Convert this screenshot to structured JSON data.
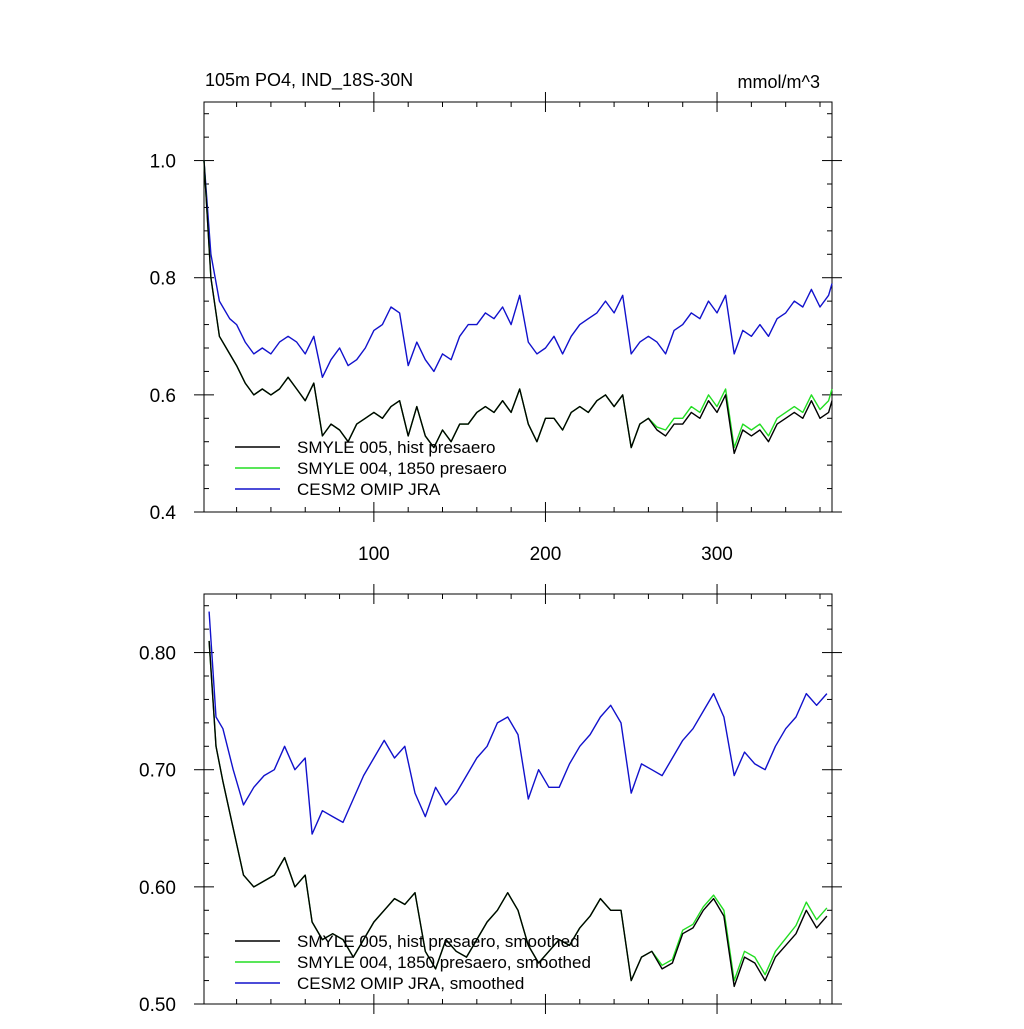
{
  "chart_data": [
    {
      "type": "line",
      "title": "105m PO4, IND_18S-30N",
      "units_label": "mmol/m^3",
      "xlim": [
        1,
        367
      ],
      "ylim": [
        0.4,
        1.1
      ],
      "x_ticks": [
        100,
        200,
        300
      ],
      "x_tick_labels": [
        "100",
        "200",
        "300"
      ],
      "y_ticks": [
        0.4,
        0.6,
        0.8,
        1.0
      ],
      "y_tick_labels": [
        "0.4",
        "0.6",
        "0.8",
        "1.0"
      ],
      "legend_position": "bottom-left",
      "series": [
        {
          "name": "SMYLE 005, hist presaero",
          "color": "#000000",
          "x": [
            1,
            5,
            10,
            16,
            20,
            25,
            30,
            35,
            40,
            45,
            50,
            55,
            60,
            65,
            70,
            75,
            80,
            85,
            90,
            95,
            100,
            105,
            110,
            115,
            120,
            125,
            130,
            135,
            140,
            145,
            150,
            155,
            160,
            165,
            170,
            175,
            180,
            185,
            190,
            195,
            200,
            205,
            210,
            215,
            220,
            225,
            230,
            235,
            240,
            245,
            250,
            255,
            260,
            265,
            270,
            275,
            280,
            285,
            290,
            295,
            300,
            305,
            310,
            315,
            320,
            325,
            330,
            335,
            340,
            345,
            350,
            355,
            360,
            365,
            367
          ],
          "values": [
            1.0,
            0.8,
            0.7,
            0.67,
            0.65,
            0.62,
            0.6,
            0.61,
            0.6,
            0.61,
            0.63,
            0.61,
            0.59,
            0.62,
            0.53,
            0.55,
            0.54,
            0.52,
            0.55,
            0.56,
            0.57,
            0.56,
            0.58,
            0.59,
            0.53,
            0.58,
            0.53,
            0.51,
            0.54,
            0.52,
            0.55,
            0.55,
            0.57,
            0.58,
            0.57,
            0.59,
            0.57,
            0.61,
            0.55,
            0.52,
            0.56,
            0.56,
            0.54,
            0.57,
            0.58,
            0.57,
            0.59,
            0.6,
            0.58,
            0.6,
            0.51,
            0.55,
            0.56,
            0.54,
            0.53,
            0.55,
            0.55,
            0.57,
            0.56,
            0.59,
            0.57,
            0.6,
            0.5,
            0.54,
            0.53,
            0.54,
            0.52,
            0.55,
            0.56,
            0.57,
            0.56,
            0.59,
            0.56,
            0.57,
            0.59
          ]
        },
        {
          "name": "SMYLE 004, 1850 presaero",
          "color": "#22dd22",
          "x": [
            1,
            5,
            10,
            16,
            20,
            25,
            30,
            35,
            40,
            45,
            50,
            55,
            60,
            65,
            70,
            75,
            80,
            85,
            90,
            95,
            100,
            105,
            110,
            115,
            120,
            125,
            130,
            135,
            140,
            145,
            150,
            155,
            160,
            165,
            170,
            175,
            180,
            185,
            190,
            195,
            200,
            205,
            210,
            215,
            220,
            225,
            230,
            235,
            240,
            245,
            250,
            255,
            260,
            265,
            270,
            275,
            280,
            285,
            290,
            295,
            300,
            305,
            310,
            315,
            320,
            325,
            330,
            335,
            340,
            345,
            350,
            355,
            360,
            365,
            367
          ],
          "values": [
            1.0,
            0.8,
            0.7,
            0.67,
            0.65,
            0.62,
            0.6,
            0.61,
            0.6,
            0.61,
            0.63,
            0.61,
            0.59,
            0.62,
            0.53,
            0.55,
            0.54,
            0.52,
            0.55,
            0.56,
            0.57,
            0.56,
            0.58,
            0.59,
            0.53,
            0.58,
            0.53,
            0.51,
            0.54,
            0.52,
            0.55,
            0.55,
            0.57,
            0.58,
            0.57,
            0.59,
            0.57,
            0.61,
            0.55,
            0.52,
            0.56,
            0.56,
            0.54,
            0.57,
            0.58,
            0.57,
            0.59,
            0.6,
            0.58,
            0.6,
            0.51,
            0.55,
            0.56,
            0.545,
            0.54,
            0.56,
            0.56,
            0.58,
            0.57,
            0.6,
            0.58,
            0.61,
            0.51,
            0.55,
            0.54,
            0.55,
            0.53,
            0.56,
            0.57,
            0.58,
            0.57,
            0.6,
            0.575,
            0.59,
            0.61
          ]
        },
        {
          "name": "CESM2 OMIP JRA",
          "color": "#1111cc",
          "x": [
            1,
            5,
            10,
            16,
            20,
            25,
            30,
            35,
            40,
            45,
            50,
            55,
            60,
            65,
            70,
            75,
            80,
            85,
            90,
            95,
            100,
            105,
            110,
            115,
            120,
            125,
            130,
            135,
            140,
            145,
            150,
            155,
            160,
            165,
            170,
            175,
            180,
            185,
            190,
            195,
            200,
            205,
            210,
            215,
            220,
            225,
            230,
            235,
            240,
            245,
            250,
            255,
            260,
            265,
            270,
            275,
            280,
            285,
            290,
            295,
            300,
            305,
            310,
            315,
            320,
            325,
            330,
            335,
            340,
            345,
            350,
            355,
            360,
            365,
            367
          ],
          "values": [
            1.0,
            0.84,
            0.76,
            0.73,
            0.72,
            0.69,
            0.67,
            0.68,
            0.67,
            0.69,
            0.7,
            0.69,
            0.67,
            0.7,
            0.63,
            0.66,
            0.68,
            0.65,
            0.66,
            0.68,
            0.71,
            0.72,
            0.75,
            0.74,
            0.65,
            0.69,
            0.66,
            0.64,
            0.67,
            0.66,
            0.7,
            0.72,
            0.72,
            0.74,
            0.73,
            0.75,
            0.72,
            0.77,
            0.69,
            0.67,
            0.68,
            0.7,
            0.67,
            0.7,
            0.72,
            0.73,
            0.74,
            0.76,
            0.74,
            0.77,
            0.67,
            0.69,
            0.7,
            0.69,
            0.67,
            0.71,
            0.72,
            0.74,
            0.73,
            0.76,
            0.74,
            0.77,
            0.67,
            0.71,
            0.7,
            0.72,
            0.7,
            0.73,
            0.74,
            0.76,
            0.75,
            0.78,
            0.75,
            0.77,
            0.79
          ]
        }
      ]
    },
    {
      "type": "line",
      "xlim": [
        1,
        367
      ],
      "ylim": [
        0.5,
        0.85
      ],
      "x_ticks": [
        100,
        200,
        300
      ],
      "y_ticks": [
        0.5,
        0.6,
        0.7,
        0.8
      ],
      "y_tick_labels": [
        "0.50",
        "0.60",
        "0.70",
        "0.80"
      ],
      "legend_position": "bottom-left",
      "series": [
        {
          "name": "SMYLE 005, hist presaero, smoothed",
          "color": "#000000",
          "x": [
            4,
            8,
            12,
            18,
            24,
            30,
            36,
            42,
            48,
            54,
            60,
            64,
            70,
            76,
            82,
            88,
            94,
            100,
            106,
            112,
            118,
            124,
            130,
            136,
            142,
            148,
            154,
            160,
            166,
            172,
            178,
            184,
            190,
            196,
            202,
            208,
            214,
            220,
            226,
            232,
            238,
            244,
            250,
            256,
            262,
            268,
            274,
            280,
            286,
            292,
            298,
            304,
            310,
            316,
            322,
            328,
            334,
            340,
            346,
            352,
            358,
            364
          ],
          "values": [
            0.81,
            0.72,
            0.69,
            0.65,
            0.61,
            0.6,
            0.605,
            0.61,
            0.625,
            0.6,
            0.61,
            0.57,
            0.555,
            0.56,
            0.555,
            0.54,
            0.555,
            0.57,
            0.58,
            0.59,
            0.585,
            0.595,
            0.545,
            0.53,
            0.555,
            0.545,
            0.54,
            0.555,
            0.57,
            0.58,
            0.595,
            0.58,
            0.55,
            0.535,
            0.545,
            0.555,
            0.55,
            0.565,
            0.575,
            0.59,
            0.58,
            0.58,
            0.52,
            0.54,
            0.545,
            0.53,
            0.535,
            0.56,
            0.565,
            0.58,
            0.59,
            0.575,
            0.515,
            0.54,
            0.535,
            0.52,
            0.54,
            0.55,
            0.56,
            0.58,
            0.565,
            0.575
          ]
        },
        {
          "name": "SMYLE 004, 1850 presaero, smoothed",
          "color": "#22dd22",
          "x": [
            4,
            8,
            12,
            18,
            24,
            30,
            36,
            42,
            48,
            54,
            60,
            64,
            70,
            76,
            82,
            88,
            94,
            100,
            106,
            112,
            118,
            124,
            130,
            136,
            142,
            148,
            154,
            160,
            166,
            172,
            178,
            184,
            190,
            196,
            202,
            208,
            214,
            220,
            226,
            232,
            238,
            244,
            250,
            256,
            262,
            268,
            274,
            280,
            286,
            292,
            298,
            304,
            310,
            316,
            322,
            328,
            334,
            340,
            346,
            352,
            358,
            364
          ],
          "values": [
            0.81,
            0.72,
            0.69,
            0.65,
            0.61,
            0.6,
            0.605,
            0.61,
            0.625,
            0.6,
            0.61,
            0.57,
            0.555,
            0.56,
            0.555,
            0.54,
            0.555,
            0.57,
            0.58,
            0.59,
            0.585,
            0.595,
            0.545,
            0.53,
            0.555,
            0.545,
            0.54,
            0.555,
            0.57,
            0.58,
            0.595,
            0.58,
            0.55,
            0.535,
            0.545,
            0.555,
            0.55,
            0.565,
            0.575,
            0.59,
            0.58,
            0.58,
            0.52,
            0.54,
            0.545,
            0.533,
            0.538,
            0.563,
            0.568,
            0.583,
            0.593,
            0.58,
            0.52,
            0.545,
            0.54,
            0.525,
            0.545,
            0.556,
            0.567,
            0.587,
            0.572,
            0.582
          ]
        },
        {
          "name": "CESM2 OMIP JRA, smoothed",
          "color": "#1111cc",
          "x": [
            4,
            8,
            12,
            18,
            24,
            30,
            36,
            42,
            48,
            54,
            60,
            64,
            70,
            76,
            82,
            88,
            94,
            100,
            106,
            112,
            118,
            124,
            130,
            136,
            142,
            148,
            154,
            160,
            166,
            172,
            178,
            184,
            190,
            196,
            202,
            208,
            214,
            220,
            226,
            232,
            238,
            244,
            250,
            256,
            262,
            268,
            274,
            280,
            286,
            292,
            298,
            304,
            310,
            316,
            322,
            328,
            334,
            340,
            346,
            352,
            358,
            364
          ],
          "values": [
            0.835,
            0.745,
            0.735,
            0.7,
            0.67,
            0.685,
            0.695,
            0.7,
            0.72,
            0.7,
            0.71,
            0.645,
            0.665,
            0.66,
            0.655,
            0.675,
            0.695,
            0.71,
            0.725,
            0.71,
            0.72,
            0.68,
            0.66,
            0.685,
            0.67,
            0.68,
            0.695,
            0.71,
            0.72,
            0.74,
            0.745,
            0.73,
            0.675,
            0.7,
            0.685,
            0.685,
            0.705,
            0.72,
            0.73,
            0.745,
            0.755,
            0.74,
            0.68,
            0.705,
            0.7,
            0.695,
            0.71,
            0.725,
            0.735,
            0.75,
            0.765,
            0.745,
            0.695,
            0.715,
            0.705,
            0.7,
            0.72,
            0.735,
            0.745,
            0.765,
            0.755,
            0.765
          ]
        }
      ]
    }
  ]
}
